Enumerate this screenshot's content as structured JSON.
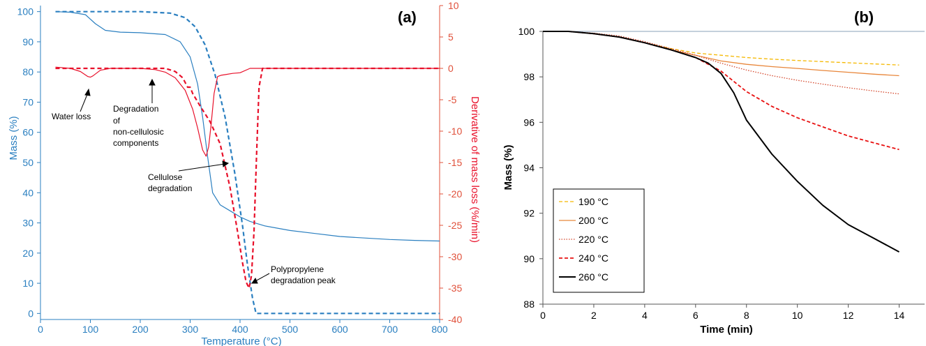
{
  "colors": {
    "mass_blue": "#2a7fc0",
    "deriv_red": "#e8102a",
    "right_axis_orange": "#e0503a",
    "c190": "#f5b800",
    "c200": "#e8863a",
    "c220": "#d4462a",
    "c240": "#e81010",
    "c260": "#000000"
  },
  "chart_data": [
    {
      "type": "line",
      "panel_label": "(a)",
      "xlabel": "Temperature (°C)",
      "ylabel": "Mass (%)",
      "y2label": "Derivative of mass loss (%/min)",
      "xlim": [
        0,
        800
      ],
      "ylim": [
        -2,
        102
      ],
      "y2lim": [
        -40,
        10
      ],
      "xticks": [
        "0",
        "100",
        "200",
        "300",
        "400",
        "500",
        "600",
        "700",
        "800"
      ],
      "yticks": [
        "0",
        "10",
        "20",
        "30",
        "40",
        "50",
        "60",
        "70",
        "80",
        "90",
        "100"
      ],
      "y2ticks": [
        "10",
        "5",
        "0",
        "-5",
        "-10",
        "-15",
        "-20",
        "-25",
        "-30",
        "-35",
        "-40"
      ],
      "series": [
        {
          "axis": "left",
          "style": "solid",
          "color": "mass_blue",
          "x": [
            30,
            60,
            90,
            110,
            130,
            160,
            200,
            250,
            280,
            300,
            315,
            325,
            335,
            345,
            360,
            380,
            400,
            420,
            450,
            500,
            550,
            600,
            650,
            700,
            750,
            800
          ],
          "y": [
            100,
            99.8,
            99,
            96,
            93.8,
            93.2,
            93,
            92.4,
            90,
            85,
            76,
            65,
            52,
            40,
            36,
            34,
            32,
            30.5,
            29,
            27.5,
            26.5,
            25.5,
            25,
            24.5,
            24.2,
            24
          ]
        },
        {
          "axis": "left",
          "style": "dashed",
          "color": "mass_blue",
          "x": [
            30,
            100,
            200,
            260,
            290,
            310,
            330,
            350,
            370,
            390,
            405,
            415,
            425,
            432,
            440,
            500,
            600,
            700,
            800
          ],
          "y": [
            100,
            100,
            100,
            99.5,
            98,
            95,
            89,
            79,
            65,
            46,
            29,
            16,
            5,
            0,
            0,
            0,
            0,
            0,
            0
          ]
        },
        {
          "axis": "right",
          "style": "solid",
          "color": "deriv_red",
          "x": [
            30,
            60,
            80,
            95,
            100,
            105,
            120,
            140,
            170,
            200,
            230,
            250,
            270,
            290,
            305,
            315,
            325,
            332,
            337,
            342,
            348,
            355,
            362,
            370,
            385,
            400,
            420,
            500,
            600,
            700,
            800
          ],
          "y": [
            0.2,
            0,
            -0.5,
            -1.3,
            -1.4,
            -1.2,
            -0.3,
            0,
            0,
            0,
            -0.2,
            -0.6,
            -1.5,
            -3.5,
            -6.5,
            -9.5,
            -13,
            -14,
            -12.5,
            -9,
            -4,
            -1.3,
            -1.1,
            -1,
            -0.8,
            -0.7,
            0,
            0,
            0,
            0,
            0
          ]
        },
        {
          "axis": "right",
          "style": "dashed",
          "color": "deriv_red",
          "x": [
            30,
            100,
            200,
            250,
            270,
            285,
            295,
            300,
            305,
            320,
            340,
            360,
            380,
            395,
            405,
            412,
            418,
            423,
            428,
            433,
            438,
            445,
            500,
            600,
            700,
            800
          ],
          "y": [
            0,
            0,
            0,
            0,
            -0.5,
            -1.5,
            -3,
            -3,
            -4,
            -6,
            -8.5,
            -12,
            -19,
            -26,
            -31,
            -34,
            -35,
            -33,
            -26,
            -14,
            -3,
            0,
            0,
            0,
            0,
            0
          ]
        }
      ],
      "annotations": [
        "Water loss",
        "Degradation",
        "of",
        "non-cellulosic",
        "components",
        "Cellulose",
        "degradation",
        "Polypropylene",
        "degradation peak"
      ]
    },
    {
      "type": "line",
      "panel_label": "(b)",
      "xlabel": "Time (min)",
      "ylabel": "Mass (%)",
      "xlim": [
        0,
        15
      ],
      "ylim": [
        88,
        100
      ],
      "xticks": [
        "0",
        "2",
        "4",
        "6",
        "8",
        "10",
        "12",
        "14"
      ],
      "yticks": [
        "88",
        "90",
        "92",
        "94",
        "96",
        "98",
        "100"
      ],
      "legend_position": "bottom-left",
      "series": [
        {
          "name": "190 °C",
          "style": "dashed",
          "color": "c190",
          "x": [
            0,
            1,
            2,
            3,
            4,
            5,
            6,
            7,
            8,
            9,
            10,
            11,
            12,
            13,
            14
          ],
          "y": [
            100,
            100,
            99.9,
            99.75,
            99.5,
            99.25,
            99.05,
            98.95,
            98.85,
            98.78,
            98.72,
            98.67,
            98.62,
            98.57,
            98.52
          ]
        },
        {
          "name": "200 °C",
          "style": "solid",
          "color": "c200",
          "x": [
            0,
            1,
            2,
            3,
            4,
            5,
            6,
            7,
            8,
            9,
            10,
            11,
            12,
            13,
            14
          ],
          "y": [
            100,
            100,
            99.9,
            99.75,
            99.5,
            99.2,
            98.95,
            98.7,
            98.55,
            98.45,
            98.37,
            98.28,
            98.2,
            98.12,
            98.05
          ]
        },
        {
          "name": "220 °C",
          "style": "dotted",
          "color": "c220",
          "x": [
            0,
            1,
            2,
            3,
            4,
            5,
            6,
            7,
            8,
            9,
            10,
            11,
            12,
            13,
            14
          ],
          "y": [
            100,
            100,
            99.92,
            99.8,
            99.55,
            99.25,
            98.95,
            98.6,
            98.3,
            98.05,
            97.85,
            97.68,
            97.52,
            97.38,
            97.25
          ]
        },
        {
          "name": "240 °C",
          "style": "dashed",
          "color": "c240",
          "x": [
            0,
            1,
            2,
            3,
            4,
            5,
            6,
            7,
            8,
            9,
            10,
            11,
            12,
            13,
            14
          ],
          "y": [
            100,
            100,
            99.9,
            99.75,
            99.5,
            99.2,
            98.85,
            98.25,
            97.35,
            96.7,
            96.2,
            95.8,
            95.4,
            95.1,
            94.8
          ]
        },
        {
          "name": "260 °C",
          "style": "solid",
          "color": "c260",
          "x": [
            0,
            1,
            2,
            3,
            4,
            5,
            6,
            6.5,
            7,
            7.5,
            8,
            9,
            10,
            11,
            12,
            13,
            14
          ],
          "y": [
            100,
            100,
            99.9,
            99.75,
            99.5,
            99.2,
            98.85,
            98.6,
            98.15,
            97.3,
            96.1,
            94.6,
            93.4,
            92.35,
            91.5,
            90.9,
            90.3
          ]
        }
      ]
    }
  ]
}
